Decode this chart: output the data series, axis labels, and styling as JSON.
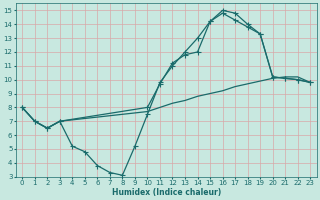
{
  "xlabel": "Humidex (Indice chaleur)",
  "xlim": [
    -0.5,
    23.5
  ],
  "ylim": [
    3,
    15.5
  ],
  "xticks": [
    0,
    1,
    2,
    3,
    4,
    5,
    6,
    7,
    8,
    9,
    10,
    11,
    12,
    13,
    14,
    15,
    16,
    17,
    18,
    19,
    20,
    21,
    22,
    23
  ],
  "yticks": [
    3,
    4,
    5,
    6,
    7,
    8,
    9,
    10,
    11,
    12,
    13,
    14,
    15
  ],
  "background_color": "#c8e8e0",
  "grid_color": "#d8a8a8",
  "line_color": "#1a6b6b",
  "line1_x": [
    0,
    1,
    2,
    3,
    4,
    5,
    6,
    7,
    8,
    9,
    10,
    11,
    12,
    13,
    14,
    15,
    16,
    17,
    18,
    19,
    20,
    21,
    22,
    23
  ],
  "line1_y": [
    8.0,
    7.0,
    6.5,
    7.0,
    5.2,
    4.8,
    3.8,
    3.3,
    3.1,
    5.2,
    7.5,
    9.8,
    11.0,
    12.0,
    13.0,
    14.2,
    15.0,
    14.8,
    14.0,
    13.3,
    10.2,
    10.1,
    10.0,
    9.8
  ],
  "line2_x": [
    0,
    1,
    2,
    3,
    10,
    11,
    12,
    13,
    14,
    15,
    16,
    17,
    18,
    19,
    20,
    21,
    22,
    23
  ],
  "line2_y": [
    8.0,
    7.0,
    6.5,
    7.0,
    7.7,
    8.0,
    8.3,
    8.5,
    8.8,
    9.0,
    9.2,
    9.5,
    9.7,
    9.9,
    10.1,
    10.2,
    10.2,
    9.8
  ],
  "line3_x": [
    0,
    1,
    2,
    3,
    10,
    11,
    12,
    13,
    14,
    15,
    16,
    17,
    18,
    19,
    20,
    21,
    22,
    23
  ],
  "line3_y": [
    8.0,
    7.0,
    6.5,
    7.0,
    8.0,
    9.7,
    11.2,
    11.8,
    12.0,
    14.2,
    14.8,
    14.3,
    13.8,
    13.3,
    10.2,
    10.1,
    10.0,
    9.8
  ]
}
